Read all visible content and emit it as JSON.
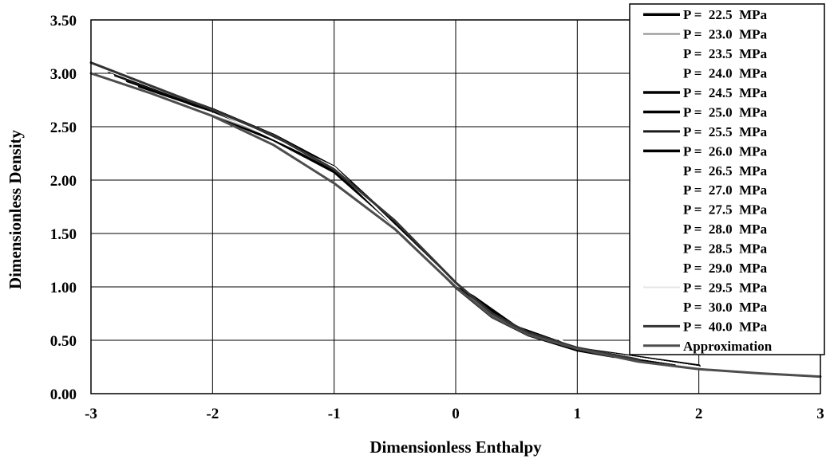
{
  "chart_data": {
    "type": "line",
    "xlabel": "Dimensionless Enthalpy",
    "ylabel": "Dimensionless Density",
    "xlim": [
      -3,
      3
    ],
    "ylim": [
      0,
      3.5
    ],
    "x_ticks": [
      "-3",
      "-2",
      "-1",
      "0",
      "1",
      "2",
      "3"
    ],
    "y_ticks": [
      "0.00",
      "0.50",
      "1.00",
      "1.50",
      "2.00",
      "2.50",
      "3.00",
      "3.50"
    ],
    "grid": true,
    "legend_position": "top-right",
    "series": [
      {
        "name": "P =  22.5  MPa",
        "color": "#000000",
        "width": 4,
        "x": [
          -2.2,
          -1.5,
          -1.0,
          -0.5,
          0.0,
          0.3,
          0.6,
          1.0,
          1.3
        ],
        "y": [
          2.7,
          2.38,
          2.08,
          1.58,
          1.0,
          0.72,
          0.55,
          0.41,
          0.35
        ]
      },
      {
        "name": "P =  23.0  MPa",
        "color": "#8c8c8c",
        "width": 2,
        "x": [
          -2.3,
          -1.5,
          -1.0,
          -0.5,
          0.0,
          0.3,
          0.6,
          1.0,
          1.4
        ],
        "y": [
          2.74,
          2.4,
          2.1,
          1.6,
          1.02,
          0.73,
          0.56,
          0.42,
          0.34
        ]
      },
      {
        "name": "P =  23.5  MPa",
        "color": "#ffffff",
        "width": 2,
        "x": [
          -2.4,
          -1.5,
          -1.0,
          -0.5,
          0.0,
          0.5,
          1.0,
          1.5
        ],
        "y": [
          2.78,
          2.42,
          2.12,
          1.6,
          1.02,
          0.62,
          0.42,
          0.32
        ]
      },
      {
        "name": "P =  24.0  MPa",
        "color": "#ffffff",
        "width": 2,
        "x": [
          -2.5,
          -1.5,
          -1.0,
          -0.5,
          0.0,
          0.5,
          1.0,
          1.6
        ],
        "y": [
          2.82,
          2.42,
          2.12,
          1.6,
          1.02,
          0.62,
          0.42,
          0.3
        ]
      },
      {
        "name": "P =  24.5  MPa",
        "color": "#000000",
        "width": 4,
        "x": [
          -2.6,
          -2.0,
          -1.5,
          -1.0,
          -0.5,
          0.0,
          0.5,
          1.0,
          1.7
        ],
        "y": [
          2.88,
          2.65,
          2.42,
          2.12,
          1.6,
          1.02,
          0.62,
          0.42,
          0.29
        ]
      },
      {
        "name": "P =  25.0  MPa",
        "color": "#000000",
        "width": 4,
        "x": [
          -2.7,
          -2.0,
          -1.5,
          -1.0,
          -0.5,
          0.0,
          0.5,
          1.0,
          1.8
        ],
        "y": [
          2.93,
          2.66,
          2.42,
          2.12,
          1.6,
          1.02,
          0.62,
          0.42,
          0.28
        ]
      },
      {
        "name": "P =  25.5  MPa",
        "color": "#1a1a1a",
        "width": 3,
        "x": [
          -2.8,
          -2.0,
          -1.5,
          -1.0,
          -0.5,
          0.0,
          0.5,
          1.0,
          1.9
        ],
        "y": [
          2.98,
          2.66,
          2.42,
          2.12,
          1.6,
          1.02,
          0.62,
          0.42,
          0.27
        ]
      },
      {
        "name": "P =  26.0  MPa",
        "color": "#000000",
        "width": 4,
        "x": [
          -2.85,
          -2.0,
          -1.5,
          -1.0,
          -0.5,
          0.0,
          0.5,
          1.0,
          2.0
        ],
        "y": [
          3.02,
          2.66,
          2.42,
          2.12,
          1.6,
          1.02,
          0.62,
          0.42,
          0.26
        ]
      },
      {
        "name": "P =  26.5  MPa",
        "color": "#ffffff",
        "width": 2,
        "x": [
          -2.9,
          -2.0,
          -1.0,
          0.0,
          1.0,
          2.0
        ],
        "y": [
          3.04,
          2.66,
          2.12,
          1.02,
          0.42,
          0.25
        ]
      },
      {
        "name": "P =  27.0  MPa",
        "color": "#ffffff",
        "width": 2,
        "x": [
          -2.9,
          -2.0,
          -1.0,
          0.0,
          1.0,
          2.0
        ],
        "y": [
          3.05,
          2.66,
          2.12,
          1.02,
          0.42,
          0.25
        ]
      },
      {
        "name": "P =  27.5  MPa",
        "color": "#ffffff",
        "width": 2,
        "x": [
          -2.9,
          -2.0,
          -1.0,
          0.0,
          1.0,
          2.0
        ],
        "y": [
          3.06,
          2.66,
          2.12,
          1.02,
          0.42,
          0.25
        ]
      },
      {
        "name": "P =  28.0  MPa",
        "color": "#ffffff",
        "width": 2,
        "x": [
          -2.9,
          -2.0,
          -1.0,
          0.0,
          1.0,
          2.0
        ],
        "y": [
          3.07,
          2.66,
          2.12,
          1.02,
          0.42,
          0.25
        ]
      },
      {
        "name": "P =  28.5  MPa",
        "color": "#ffffff",
        "width": 2,
        "x": [
          -2.9,
          -2.0,
          -1.0,
          0.0,
          1.0,
          2.0
        ],
        "y": [
          3.08,
          2.66,
          2.12,
          1.02,
          0.42,
          0.25
        ]
      },
      {
        "name": "P =  29.0  MPa",
        "color": "#ffffff",
        "width": 2,
        "x": [
          -2.9,
          -2.0,
          -1.0,
          0.0,
          1.0,
          2.0
        ],
        "y": [
          3.08,
          2.66,
          2.12,
          1.02,
          0.42,
          0.25
        ]
      },
      {
        "name": "P =  29.5  MPa",
        "color": "#e6e6e6",
        "width": 2,
        "x": [
          -2.9,
          -2.0,
          -1.0,
          0.0,
          1.0,
          2.0
        ],
        "y": [
          3.08,
          2.66,
          2.12,
          1.02,
          0.42,
          0.25
        ]
      },
      {
        "name": "P =  30.0  MPa",
        "color": "#ffffff",
        "width": 2,
        "x": [
          -2.9,
          -2.0,
          -1.0,
          0.0,
          1.0,
          2.0
        ],
        "y": [
          3.08,
          2.66,
          2.12,
          1.02,
          0.42,
          0.25
        ]
      },
      {
        "name": "P =  40.0  MPa",
        "color": "#333333",
        "width": 3,
        "x": [
          -3.0,
          -2.5,
          -2.0,
          -1.5,
          -1.0,
          -0.5,
          0.0,
          0.3,
          0.6,
          1.0,
          1.5
        ],
        "y": [
          3.1,
          2.88,
          2.66,
          2.42,
          2.1,
          1.62,
          1.04,
          0.75,
          0.57,
          0.43,
          0.32
        ]
      },
      {
        "name": "Approximation",
        "color": "#4d4d4d",
        "width": 3,
        "x": [
          -3.0,
          -2.5,
          -2.0,
          -1.5,
          -1.0,
          -0.5,
          0.0,
          0.3,
          0.6,
          1.0,
          1.5,
          2.0,
          2.5,
          3.0
        ],
        "y": [
          3.0,
          2.81,
          2.6,
          2.33,
          1.97,
          1.54,
          1.0,
          0.72,
          0.55,
          0.42,
          0.3,
          0.23,
          0.19,
          0.16
        ]
      }
    ]
  }
}
